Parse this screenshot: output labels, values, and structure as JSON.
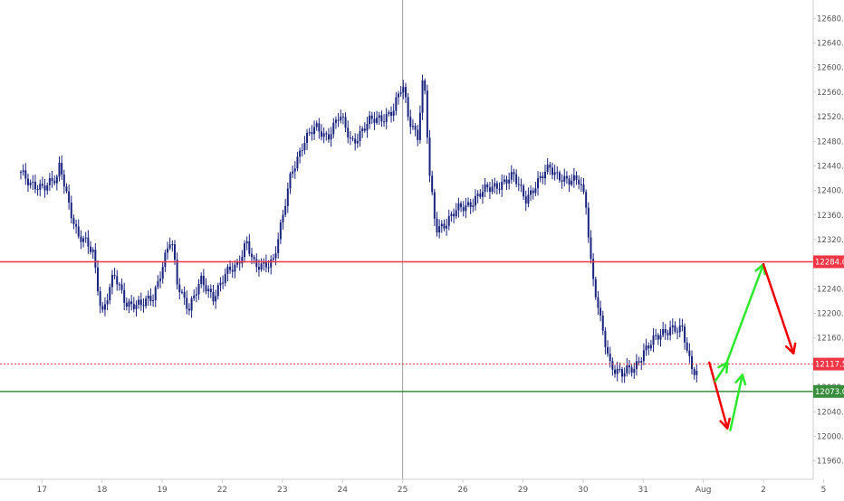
{
  "chart_data": {
    "type": "candlestick",
    "title": "",
    "xlabel": "",
    "ylabel": "",
    "ylim": [
      11930,
      12710
    ],
    "grid": false,
    "y_ticks": [
      "11960.0",
      "12000.0",
      "12040.0",
      "12080.0",
      "12120.0",
      "12160.0",
      "12200.0",
      "12240.0",
      "12280.0",
      "12320.0",
      "12360.0",
      "12400.0",
      "12440.0",
      "12480.0",
      "12520.0",
      "12560.0",
      "12600.0",
      "12640.0",
      "12680.0"
    ],
    "x_ticks": [
      {
        "label": "17",
        "t": 0.35
      },
      {
        "label": "18",
        "t": 1.35
      },
      {
        "label": "19",
        "t": 2.35
      },
      {
        "label": "22",
        "t": 3.35
      },
      {
        "label": "23",
        "t": 4.35
      },
      {
        "label": "24",
        "t": 5.35
      },
      {
        "label": "25",
        "t": 6.35
      },
      {
        "label": "26",
        "t": 7.35
      },
      {
        "label": "29",
        "t": 8.35
      },
      {
        "label": "30",
        "t": 9.35
      },
      {
        "label": "31",
        "t": 10.35
      },
      {
        "label": "Aug",
        "t": 11.35
      },
      {
        "label": "2",
        "t": 12.35
      },
      {
        "label": "5",
        "t": 13.35
      }
    ],
    "price_path": [
      [
        0.0,
        12430
      ],
      [
        0.15,
        12405
      ],
      [
        0.35,
        12410
      ],
      [
        0.6,
        12415
      ],
      [
        0.65,
        12440
      ],
      [
        0.75,
        12400
      ],
      [
        0.95,
        12325
      ],
      [
        1.2,
        12300
      ],
      [
        1.35,
        12200
      ],
      [
        1.55,
        12260
      ],
      [
        1.75,
        12220
      ],
      [
        2.0,
        12210
      ],
      [
        2.2,
        12230
      ],
      [
        2.4,
        12290
      ],
      [
        2.5,
        12320
      ],
      [
        2.6,
        12250
      ],
      [
        2.8,
        12210
      ],
      [
        3.0,
        12250
      ],
      [
        3.2,
        12230
      ],
      [
        3.4,
        12260
      ],
      [
        3.6,
        12280
      ],
      [
        3.75,
        12320
      ],
      [
        3.9,
        12270
      ],
      [
        4.2,
        12290
      ],
      [
        4.35,
        12350
      ],
      [
        4.5,
        12430
      ],
      [
        4.7,
        12480
      ],
      [
        4.9,
        12500
      ],
      [
        5.1,
        12490
      ],
      [
        5.3,
        12520
      ],
      [
        5.5,
        12480
      ],
      [
        5.8,
        12510
      ],
      [
        6.0,
        12520
      ],
      [
        6.2,
        12530
      ],
      [
        6.35,
        12570
      ],
      [
        6.45,
        12520
      ],
      [
        6.6,
        12490
      ],
      [
        6.7,
        12590
      ],
      [
        6.8,
        12420
      ],
      [
        6.9,
        12340
      ],
      [
        7.1,
        12350
      ],
      [
        7.3,
        12370
      ],
      [
        7.6,
        12390
      ],
      [
        7.9,
        12410
      ],
      [
        8.2,
        12420
      ],
      [
        8.4,
        12390
      ],
      [
        8.6,
        12410
      ],
      [
        8.8,
        12440
      ],
      [
        9.1,
        12410
      ],
      [
        9.3,
        12420
      ],
      [
        9.4,
        12380
      ],
      [
        9.5,
        12260
      ],
      [
        9.65,
        12180
      ],
      [
        9.8,
        12120
      ],
      [
        10.0,
        12100
      ],
      [
        10.2,
        12110
      ],
      [
        10.35,
        12140
      ],
      [
        10.6,
        12160
      ],
      [
        10.8,
        12180
      ],
      [
        11.0,
        12170
      ],
      [
        11.15,
        12110
      ],
      [
        11.25,
        12110
      ]
    ],
    "levels": [
      {
        "value": 12284.0,
        "label": "12284.0",
        "color": "#f23645",
        "style": "solid"
      },
      {
        "value": 12117.5,
        "label": "12117.5",
        "color": "#f23645",
        "style": "dotted"
      },
      {
        "value": 12073.0,
        "label": "12073.0",
        "color": "#388e3c",
        "style": "solid"
      }
    ],
    "vertical_marker_t": 6.35,
    "projection_arrows": [
      {
        "color": "#f20000",
        "from": [
          11.45,
          12120
        ],
        "to": [
          11.75,
          12013
        ]
      },
      {
        "color": "#2ee82e",
        "from": [
          11.55,
          12090
        ],
        "to": [
          11.75,
          12120
        ]
      },
      {
        "color": "#2ee82e",
        "from": [
          11.8,
          12010
        ],
        "to": [
          12.0,
          12100
        ]
      },
      {
        "color": "#2ee82e",
        "from": [
          11.72,
          12115
        ],
        "to": [
          12.35,
          12280
        ]
      },
      {
        "color": "#f20000",
        "from": [
          12.35,
          12280
        ],
        "to": [
          12.85,
          12135
        ]
      }
    ],
    "colors": {
      "candle": "#1a237e",
      "axis_text": "#555555",
      "marker_line": "#9e9e9e"
    }
  }
}
